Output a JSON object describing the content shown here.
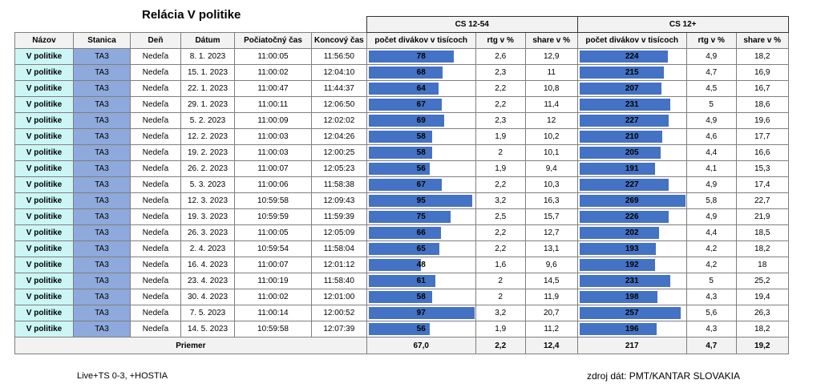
{
  "title": "Relácia V politike",
  "groups": {
    "g1": "CS 12-54",
    "g2": "CS 12+"
  },
  "headers": [
    "Názov",
    "Stanica",
    "Deň",
    "Dátum",
    "Počiatočný čas",
    "Koncový čas",
    "počet divákov v tisícoch",
    "rtg v %",
    "share v %",
    "počet divákov v tisícoch",
    "rtg v %",
    "share v %"
  ],
  "rows": [
    {
      "name": "V politike",
      "station": "TA3",
      "day": "Nedeľa",
      "date": "8. 1. 2023",
      "start": "11:00:05",
      "end": "11:56:50",
      "v1": "78",
      "r1": "2,6",
      "s1": "12,9",
      "v2": "224",
      "r2": "4,9",
      "s2": "18,2"
    },
    {
      "name": "V politike",
      "station": "TA3",
      "day": "Nedeľa",
      "date": "15. 1. 2023",
      "start": "11:00:02",
      "end": "12:04:10",
      "v1": "68",
      "r1": "2,3",
      "s1": "11",
      "v2": "215",
      "r2": "4,7",
      "s2": "16,9"
    },
    {
      "name": "V politike",
      "station": "TA3",
      "day": "Nedeľa",
      "date": "22. 1. 2023",
      "start": "11:00:47",
      "end": "11:44:37",
      "v1": "64",
      "r1": "2,2",
      "s1": "10,8",
      "v2": "207",
      "r2": "4,5",
      "s2": "16,7"
    },
    {
      "name": "V politike",
      "station": "TA3",
      "day": "Nedeľa",
      "date": "29. 1. 2023",
      "start": "11:00:11",
      "end": "12:06:50",
      "v1": "67",
      "r1": "2,2",
      "s1": "11,4",
      "v2": "231",
      "r2": "5",
      "s2": "18,6"
    },
    {
      "name": "V politike",
      "station": "TA3",
      "day": "Nedeľa",
      "date": "5. 2. 2023",
      "start": "11:00:09",
      "end": "12:02:02",
      "v1": "69",
      "r1": "2,3",
      "s1": "12",
      "v2": "227",
      "r2": "4,9",
      "s2": "19,6"
    },
    {
      "name": "V politike",
      "station": "TA3",
      "day": "Nedeľa",
      "date": "12. 2. 2023",
      "start": "11:00:03",
      "end": "12:04:26",
      "v1": "58",
      "r1": "1,9",
      "s1": "10,2",
      "v2": "210",
      "r2": "4,6",
      "s2": "17,7"
    },
    {
      "name": "V politike",
      "station": "TA3",
      "day": "Nedeľa",
      "date": "19. 2. 2023",
      "start": "11:00:03",
      "end": "12:00:25",
      "v1": "58",
      "r1": "2",
      "s1": "10,1",
      "v2": "205",
      "r2": "4,4",
      "s2": "16,6"
    },
    {
      "name": "V politike",
      "station": "TA3",
      "day": "Nedeľa",
      "date": "26. 2. 2023",
      "start": "11:00:07",
      "end": "12:05:23",
      "v1": "56",
      "r1": "1,9",
      "s1": "9,4",
      "v2": "191",
      "r2": "4,1",
      "s2": "15,3"
    },
    {
      "name": "V politike",
      "station": "TA3",
      "day": "Nedeľa",
      "date": "5. 3. 2023",
      "start": "11:00:06",
      "end": "11:58:38",
      "v1": "67",
      "r1": "2,2",
      "s1": "10,3",
      "v2": "227",
      "r2": "4,9",
      "s2": "17,4"
    },
    {
      "name": "V politike",
      "station": "TA3",
      "day": "Nedeľa",
      "date": "12. 3. 2023",
      "start": "10:59:58",
      "end": "12:09:43",
      "v1": "95",
      "r1": "3,2",
      "s1": "16,3",
      "v2": "269",
      "r2": "5,8",
      "s2": "22,7"
    },
    {
      "name": "V politike",
      "station": "TA3",
      "day": "Nedeľa",
      "date": "19. 3. 2023",
      "start": "10:59:59",
      "end": "11:59:39",
      "v1": "75",
      "r1": "2,5",
      "s1": "15,7",
      "v2": "226",
      "r2": "4,9",
      "s2": "21,9"
    },
    {
      "name": "V politike",
      "station": "TA3",
      "day": "Nedeľa",
      "date": "26. 3. 2023",
      "start": "11:00:05",
      "end": "12:05:09",
      "v1": "66",
      "r1": "2,2",
      "s1": "12,7",
      "v2": "202",
      "r2": "4,4",
      "s2": "18,5"
    },
    {
      "name": "V politike",
      "station": "TA3",
      "day": "Nedeľa",
      "date": "2. 4. 2023",
      "start": "10:59:54",
      "end": "11:58:04",
      "v1": "65",
      "r1": "2,2",
      "s1": "13,1",
      "v2": "193",
      "r2": "4,2",
      "s2": "18,2"
    },
    {
      "name": "V politike",
      "station": "TA3",
      "day": "Nedeľa",
      "date": "16. 4. 2023",
      "start": "11:00:07",
      "end": "12:01:12",
      "v1": "48",
      "r1": "1,6",
      "s1": "9,6",
      "v2": "192",
      "r2": "4,2",
      "s2": "18"
    },
    {
      "name": "V politike",
      "station": "TA3",
      "day": "Nedeľa",
      "date": "23. 4. 2023",
      "start": "11:00:19",
      "end": "11:58:40",
      "v1": "61",
      "r1": "2",
      "s1": "14,5",
      "v2": "231",
      "r2": "5",
      "s2": "25,2"
    },
    {
      "name": "V politike",
      "station": "TA3",
      "day": "Nedeľa",
      "date": "30. 4. 2023",
      "start": "11:00:02",
      "end": "12:01:00",
      "v1": "58",
      "r1": "2",
      "s1": "11,9",
      "v2": "198",
      "r2": "4,3",
      "s2": "19,4"
    },
    {
      "name": "V politike",
      "station": "TA3",
      "day": "Nedeľa",
      "date": "7. 5. 2023",
      "start": "11:00:14",
      "end": "12:00:52",
      "v1": "97",
      "r1": "3,2",
      "s1": "20,7",
      "v2": "257",
      "r2": "5,6",
      "s2": "26,3"
    },
    {
      "name": "V politike",
      "station": "TA3",
      "day": "Nedeľa",
      "date": "14. 5. 2023",
      "start": "10:59:58",
      "end": "12:07:39",
      "v1": "56",
      "r1": "1,9",
      "s1": "11,2",
      "v2": "196",
      "r2": "4,3",
      "s2": "18,2"
    }
  ],
  "average": {
    "label": "Priemer",
    "v1": "67,0",
    "r1": "2,2",
    "s1": "12,4",
    "v2": "217",
    "r2": "4,7",
    "s2": "19,2"
  },
  "notes": {
    "left": "Live+TS 0-3, +HOSTIA",
    "right": "zdroj dát: PMT/KANTAR SLOVAKIA"
  },
  "colors": {
    "bar": "#4472c4",
    "name_bg": "#ccf6f6",
    "station_bg": "#8ea9db",
    "header_bg": "#f2f2f2"
  }
}
